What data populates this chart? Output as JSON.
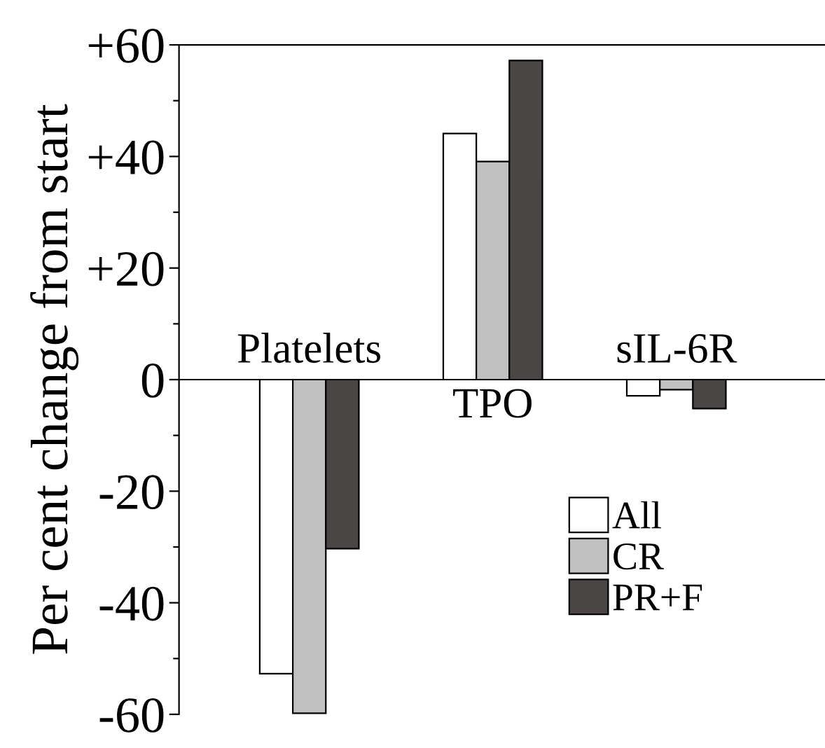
{
  "chart_data": {
    "type": "bar",
    "ylabel": "Per cent change from start",
    "categories": [
      "Platelets",
      "TPO",
      "sIL-6R"
    ],
    "series": [
      {
        "name": "All",
        "color": "#ffffff",
        "values": [
          -52.7,
          44.1,
          -2.9
        ]
      },
      {
        "name": "CR",
        "color": "#c0c0c0",
        "values": [
          -59.8,
          39.1,
          -1.8
        ]
      },
      {
        "name": "PR+F",
        "color": "#4a4646",
        "values": [
          -30.3,
          57.2,
          -5.2
        ]
      }
    ],
    "ylim": [
      -60,
      60
    ],
    "yticks": [
      {
        "value": -60,
        "label": "-60"
      },
      {
        "value": -50,
        "label": null
      },
      {
        "value": -40,
        "label": "-40"
      },
      {
        "value": -30,
        "label": null
      },
      {
        "value": -20,
        "label": "-20"
      },
      {
        "value": -10,
        "label": null
      },
      0,
      {
        "value": 10,
        "label": null
      },
      {
        "value": 20,
        "label": "+20"
      },
      {
        "value": 30,
        "label": null
      },
      {
        "value": 40,
        "label": "+40"
      },
      {
        "value": 50,
        "label": null
      },
      {
        "value": 60,
        "label": "+60"
      }
    ],
    "grid": false,
    "legend": "bottom right"
  }
}
